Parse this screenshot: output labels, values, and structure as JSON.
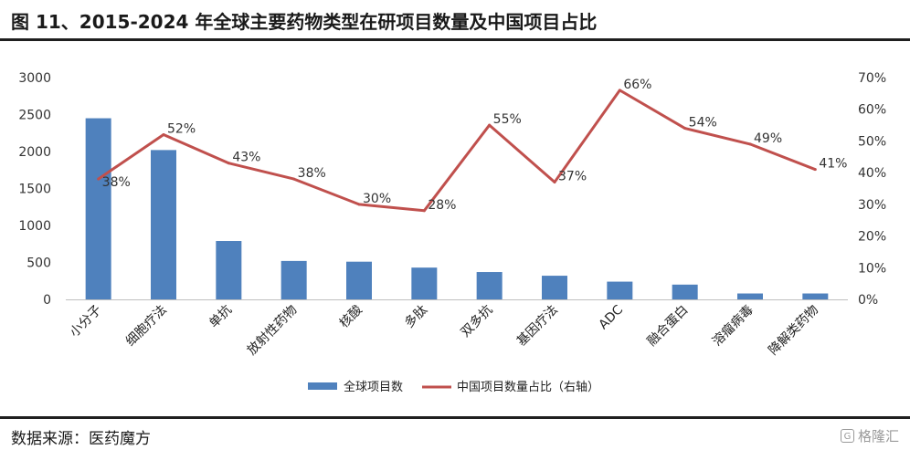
{
  "header": {
    "title": "图 11、2015-2024 年全球主要药物类型在研项目数量及中国项目占比"
  },
  "footer": {
    "source": "数据来源：医药魔方",
    "brand": "格隆汇",
    "brand_icon": "brand-logo-icon"
  },
  "colors": {
    "bar": "#4f81bd",
    "line": "#c0504d"
  },
  "chart_data": {
    "type": "bar",
    "categories": [
      "小分子",
      "细胞疗法",
      "单抗",
      "放射性药物",
      "核酸",
      "多肽",
      "双多抗",
      "基因疗法",
      "ADC",
      "融合蛋白",
      "溶瘤病毒",
      "降解类药物"
    ],
    "series": [
      {
        "name": "全球项目数",
        "type": "bar",
        "axis": "left",
        "values": [
          2450,
          2020,
          790,
          520,
          510,
          430,
          370,
          320,
          240,
          200,
          80,
          80
        ]
      },
      {
        "name": "中国项目数量占比（右轴）",
        "type": "line",
        "axis": "right",
        "values": [
          38,
          52,
          43,
          38,
          30,
          28,
          55,
          37,
          66,
          54,
          49,
          41
        ],
        "labels": [
          "38%",
          "52%",
          "43%",
          "38%",
          "30%",
          "28%",
          "55%",
          "37%",
          "66%",
          "54%",
          "49%",
          "41%"
        ]
      }
    ],
    "y_left": {
      "ylim": [
        0,
        3000
      ],
      "ticks": [
        "0",
        "500",
        "1000",
        "1500",
        "2000",
        "2500",
        "3000"
      ]
    },
    "y_right": {
      "ylim": [
        0,
        70
      ],
      "ticks": [
        "0%",
        "10%",
        "20%",
        "30%",
        "40%",
        "50%",
        "60%",
        "70%"
      ]
    },
    "grid": false,
    "legend_position": "bottom"
  }
}
